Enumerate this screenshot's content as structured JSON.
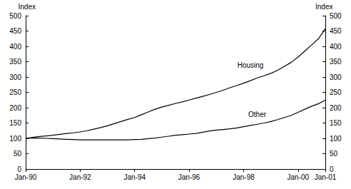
{
  "chart_data": {
    "type": "line",
    "ylabel": "Index",
    "y2label": "Index",
    "categories": [
      "Jan-90",
      null,
      null,
      null,
      null,
      null,
      null,
      null,
      "Jan-92",
      null,
      null,
      null,
      null,
      null,
      null,
      null,
      "Jan-94",
      null,
      null,
      null,
      null,
      null,
      null,
      null,
      "Jan-96",
      null,
      null,
      null,
      null,
      null,
      null,
      null,
      "Jan-98",
      null,
      null,
      null,
      null,
      null,
      null,
      null,
      "Jan-00",
      null,
      null,
      null,
      "Jan-01"
    ],
    "series": [
      {
        "name": "Housing",
        "color": "#000000",
        "values": [
          100,
          103,
          106,
          108,
          110,
          113,
          116,
          118,
          121,
          125,
          130,
          135,
          141,
          148,
          155,
          162,
          168,
          177,
          186,
          195,
          202,
          208,
          214,
          219,
          225,
          231,
          237,
          243,
          250,
          257,
          265,
          272,
          280,
          288,
          297,
          304,
          312,
          322,
          335,
          348,
          365,
          385,
          405,
          425,
          458
        ]
      },
      {
        "name": "Other",
        "color": "#000000",
        "values": [
          100,
          101,
          101,
          100,
          99,
          98,
          97,
          96,
          95,
          95,
          95,
          95,
          95,
          95,
          95,
          95,
          96,
          97,
          99,
          101,
          104,
          107,
          110,
          112,
          114,
          116,
          120,
          124,
          127,
          129,
          131,
          134,
          138,
          142,
          146,
          150,
          155,
          161,
          168,
          175,
          185,
          195,
          205,
          213,
          225
        ]
      }
    ],
    "ylim": [
      0,
      500
    ],
    "yticks": [
      0,
      50,
      100,
      150,
      200,
      250,
      300,
      350,
      400,
      450,
      500
    ],
    "y2lim": [
      0,
      500
    ],
    "y2ticks": [
      0,
      50,
      100,
      150,
      200,
      250,
      300,
      350,
      400,
      450,
      500
    ],
    "grid": false
  }
}
